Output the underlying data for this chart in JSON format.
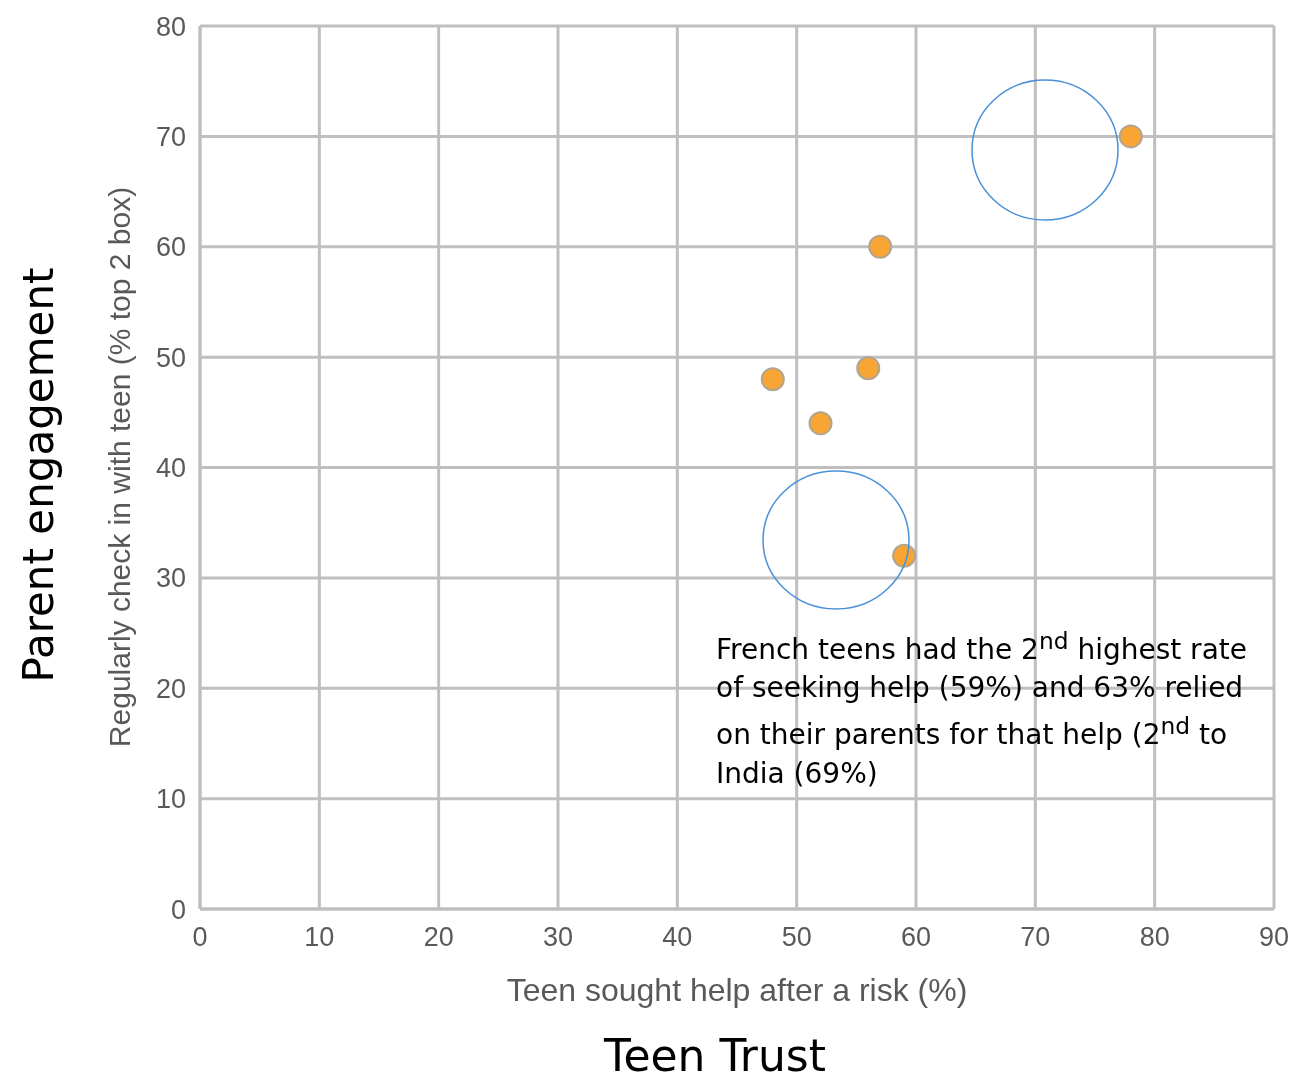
{
  "chart_data": {
    "type": "scatter",
    "xlabel": "Teen sought help after a risk (%)",
    "ylabel": "Regularly check in with teen (% top 2 box)",
    "annotations": [
      "Teen Trust",
      "Parent engagement",
      "French teens had the 2$^{nd}$ highest rate of seeking help (59%) and 63% relied on their parents for that help (2$^{nd}$ to India (69%)"
    ],
    "series": [
      {
        "color": "#f9a534",
        "x": [
          48,
          52,
          56,
          57,
          59,
          78
        ],
        "values": [
          48,
          44,
          49,
          60,
          32,
          70
        ]
      }
    ],
    "xlim": [
      0,
      90
    ],
    "xticks": [
      0,
      10,
      20,
      30,
      40,
      50,
      60,
      70,
      80,
      90
    ],
    "ylim": [
      0,
      80
    ],
    "yticks": [
      0,
      10,
      20,
      30,
      40,
      50,
      60,
      70,
      80
    ],
    "grid": true,
    "marker": "circle"
  }
}
